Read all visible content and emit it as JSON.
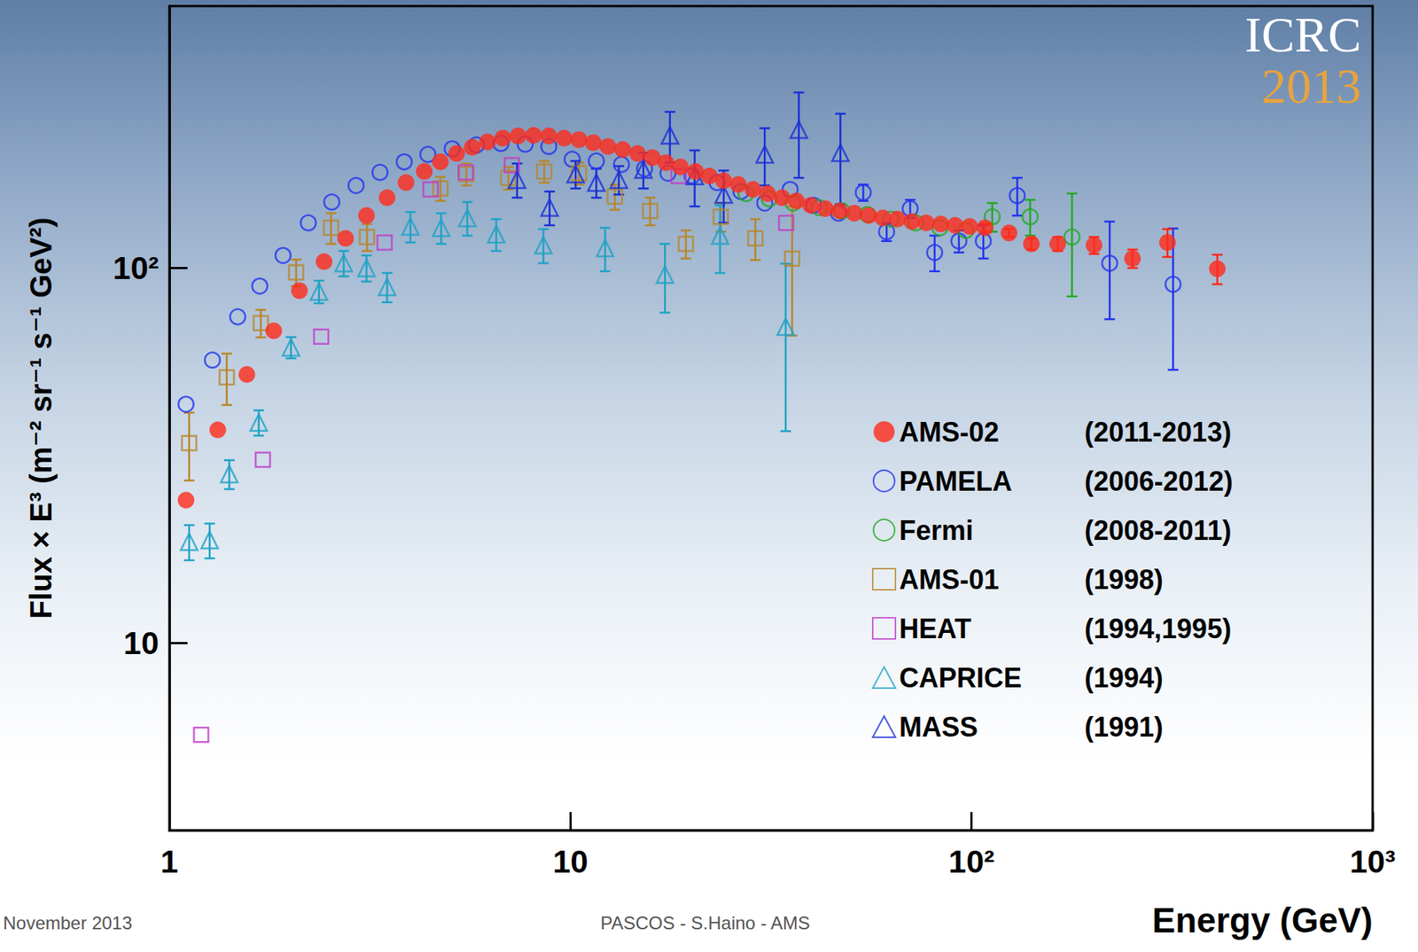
{
  "chart_data": {
    "type": "scatter",
    "x_label": "Energy (GeV)",
    "y_label": "Flux × E³ (m⁻² sr⁻¹ s⁻¹ GeV²)",
    "log": true,
    "grid": false,
    "legend": "lower right",
    "xlim": [
      1,
      1000
    ],
    "xticks": [
      1,
      10,
      {
        "value": 100,
        "label": "10²"
      },
      {
        "value": 1000,
        "label": "10³"
      }
    ],
    "ylim": [
      3.16,
      500
    ],
    "yticks": [
      10,
      {
        "value": 100,
        "label": "10²"
      }
    ],
    "logo": [
      "ICRC",
      "2013"
    ],
    "footer": [
      "November 2013",
      "PASCOS - S.Haino - AMS"
    ],
    "series": [
      {
        "name": "AMS-02",
        "period": "(2011-2013)",
        "color": "#ff2a1a",
        "marker": "filled_circle",
        "x": [
          1.1,
          1.32,
          1.56,
          1.82,
          2.11,
          2.43,
          2.75,
          3.1,
          3.49,
          3.89,
          4.32,
          4.74,
          5.2,
          5.69,
          6.21,
          6.78,
          7.4,
          8.09,
          8.83,
          9.64,
          10.5,
          11.4,
          12.4,
          13.5,
          14.7,
          16.0,
          17.3,
          18.8,
          20.5,
          22.2,
          24.1,
          26.2,
          28.5,
          31.0,
          33.7,
          36.6,
          39.7,
          43.2,
          46.9,
          51.0,
          55.4,
          60.1,
          65.3,
          71.0,
          77.1,
          83.8,
          91.0,
          98.9,
          108,
          124,
          141,
          164,
          202,
          252,
          308,
          410
        ],
        "values": [
          24,
          37,
          52,
          68,
          87,
          104,
          120,
          138,
          154,
          169,
          181,
          192,
          202,
          210,
          217,
          222,
          225,
          226,
          225,
          222,
          220,
          216,
          211,
          207,
          202,
          197,
          191,
          186,
          181,
          176,
          171,
          167,
          162,
          158,
          154,
          151,
          147,
          144,
          142,
          140,
          138,
          136,
          135,
          133,
          132,
          131,
          130,
          129,
          128,
          124,
          116,
          116,
          115,
          106,
          117,
          99.5
        ],
        "yerr": [
          null,
          null,
          null,
          null,
          null,
          null,
          null,
          null,
          null,
          null,
          null,
          null,
          null,
          null,
          null,
          null,
          null,
          null,
          null,
          null,
          null,
          null,
          null,
          null,
          null,
          null,
          null,
          null,
          null,
          null,
          null,
          null,
          null,
          null,
          null,
          null,
          null,
          null,
          null,
          null,
          null,
          null,
          null,
          null,
          null,
          null,
          null,
          null,
          3,
          3,
          4,
          5,
          6,
          6,
          10,
          9
        ]
      },
      {
        "name": "PAMELA",
        "period": "(2006-2012)",
        "color": "#2233ee",
        "marker": "open_circle",
        "x": [
          1.1,
          1.28,
          1.48,
          1.68,
          1.92,
          2.22,
          2.54,
          2.92,
          3.35,
          3.85,
          4.41,
          5.07,
          5.83,
          6.71,
          7.71,
          8.83,
          10.1,
          11.6,
          13.4,
          15.3,
          17.5,
          20.1,
          23.2,
          26.6,
          30.5,
          35.3,
          40.4,
          46.6,
          53.7,
          61.4,
          70.3,
          80.9,
          93.0,
          107,
          130,
          221,
          318
        ],
        "values": [
          43.3,
          56.8,
          74.1,
          89.5,
          108,
          132,
          150,
          166,
          180,
          192,
          201,
          208,
          213,
          215,
          214,
          211,
          195,
          193,
          189,
          184,
          179,
          176,
          169,
          160,
          149,
          162,
          147,
          140,
          159,
          125,
          144,
          110,
          118,
          118,
          156,
          103,
          90.5
        ],
        "yerr": [
          null,
          null,
          null,
          null,
          null,
          null,
          null,
          null,
          null,
          null,
          null,
          null,
          null,
          null,
          null,
          null,
          null,
          null,
          null,
          null,
          null,
          null,
          null,
          null,
          null,
          null,
          null,
          null,
          8,
          7,
          8,
          12,
          8,
          12,
          18,
          30,
          37
        ]
      },
      {
        "name": "Fermi",
        "period": "(2008-2011)",
        "color": "#22aa22",
        "marker": "open_circle",
        "x": [
          27.4,
          31.3,
          35.9,
          41.7,
          47.5,
          55.0,
          63.0,
          72.6,
          83.4,
          96.8,
          112.6,
          140,
          178
        ],
        "values": [
          158,
          153,
          149,
          145,
          142,
          139,
          135,
          132,
          128,
          126,
          137,
          137,
          121
        ],
        "yerr": [
          null,
          null,
          null,
          null,
          null,
          null,
          null,
          null,
          null,
          null,
          12,
          15,
          37
        ]
      },
      {
        "name": "AMS-01",
        "period": "(1998)",
        "color": "#b8862b",
        "marker": "open_square",
        "x": [
          1.12,
          1.39,
          1.69,
          2.07,
          2.53,
          3.11,
          4.74,
          5.5,
          7.0,
          8.6,
          10.5,
          12.9,
          15.8,
          19.4,
          23.7,
          28.9,
          35.7
        ],
        "values": [
          34.1,
          51.1,
          71.3,
          97.3,
          128,
          121,
          163,
          178,
          174,
          181,
          179,
          155,
          142,
          116,
          137,
          120,
          106
        ],
        "yerr": [
          7,
          8,
          6,
          8,
          12,
          10,
          12,
          12,
          12,
          12,
          12,
          12,
          12,
          10,
          12,
          15,
          40
        ]
      },
      {
        "name": "HEAT",
        "period": "(1994,1995)",
        "color": "#c03bc7",
        "marker": "open_square",
        "x": [
          1.2,
          1.71,
          2.39,
          3.44,
          4.48,
          5.48,
          7.14,
          18.6,
          34.5
        ],
        "values": [
          5.68,
          30.8,
          65.6,
          117,
          162,
          180,
          188,
          176,
          132
        ]
      },
      {
        "name": "CAPRICE",
        "period": "(1994)",
        "color": "#1fa3c6",
        "marker": "open_triangle",
        "x": [
          1.12,
          1.26,
          1.41,
          1.67,
          2.01,
          2.36,
          2.72,
          3.1,
          3.49,
          3.99,
          4.76,
          5.53,
          6.53,
          8.56,
          12.2,
          17.2,
          23.6,
          34.4
        ],
        "values": [
          18.6,
          18.8,
          28.2,
          38.7,
          61.4,
          86.5,
          103,
          100,
          89,
          129,
          128,
          136,
          123,
          115,
          113,
          96,
          122,
          69.7
        ],
        "yerr": [
          2,
          2,
          2.5,
          3,
          4,
          6,
          8,
          8,
          8,
          12,
          12,
          14,
          12,
          12,
          15,
          20,
          25,
          33
        ]
      },
      {
        "name": "MASS",
        "period": "(1991)",
        "color": "#1a2fd6",
        "marker": "open_triangle",
        "x": [
          7.36,
          8.87,
          10.3,
          11.6,
          13.2,
          15.2,
          17.7,
          20.4,
          24.1,
          30.5,
          37.1,
          47.1
        ],
        "values": [
          172,
          145,
          178,
          169,
          172,
          183,
          226,
          176,
          157,
          201,
          234,
          203
        ],
        "yerr": [
          18,
          15,
          15,
          15,
          15,
          20,
          35,
          30,
          25,
          35,
          60,
          55
        ]
      }
    ]
  }
}
